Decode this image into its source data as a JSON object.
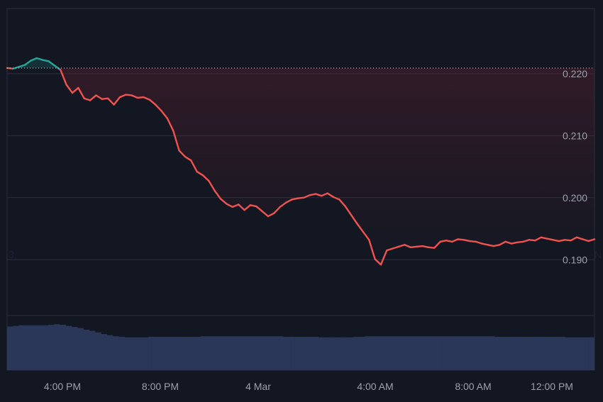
{
  "chart_data": {
    "type": "area",
    "title": "",
    "xlabel": "",
    "ylabel": "",
    "x_ticks": [
      "4:00 PM",
      "8:00 PM",
      "4 Mar",
      "4:00 AM",
      "8:00 AM",
      "12:00 PM"
    ],
    "y_ticks": [
      "0.220",
      "0.210",
      "0.200",
      "0.190"
    ],
    "y_tick_values": [
      0.22,
      0.21,
      0.2,
      0.19
    ],
    "ylim": [
      0.181,
      0.2305
    ],
    "reference_value": 0.2209,
    "edge_labels": {
      "left": "3",
      "right": "N"
    },
    "colors": {
      "background": "#131722",
      "up": "#26a69a",
      "down": "#ef5350",
      "fill_top": "#6e2432",
      "grid": "#2a2f3c",
      "volume": "#2f3b5f"
    },
    "series": [
      {
        "values": [
          0.2209,
          0.2208,
          0.2211,
          0.2214,
          0.2221,
          0.2225,
          0.2222,
          0.222,
          0.2213,
          0.2206,
          0.2182,
          0.2169,
          0.2177,
          0.216,
          0.2157,
          0.2165,
          0.2159,
          0.216,
          0.215,
          0.2162,
          0.2166,
          0.2165,
          0.2161,
          0.2162,
          0.2158,
          0.215,
          0.214,
          0.2128,
          0.2108,
          0.2076,
          0.2066,
          0.206,
          0.2042,
          0.2036,
          0.2027,
          0.2011,
          0.1998,
          0.199,
          0.1985,
          0.1989,
          0.198,
          0.1988,
          0.1986,
          0.1978,
          0.197,
          0.1975,
          0.1985,
          0.1992,
          0.1997,
          0.1999,
          0.2,
          0.2004,
          0.2006,
          0.2003,
          0.2007,
          0.2001,
          0.1997,
          0.1986,
          0.1972,
          0.1958,
          0.1945,
          0.1932,
          0.1901,
          0.1892,
          0.1915,
          0.1918,
          0.1921,
          0.1924,
          0.192,
          0.1921,
          0.1922,
          0.192,
          0.1919,
          0.1929,
          0.1931,
          0.1929,
          0.1933,
          0.1932,
          0.193,
          0.1929,
          0.1926,
          0.1924,
          0.1922,
          0.1924,
          0.1929,
          0.1926,
          0.1928,
          0.1929,
          0.1932,
          0.1931,
          0.1936,
          0.1934,
          0.1932,
          0.193,
          0.1932,
          0.1931,
          0.1936,
          0.1933,
          0.193,
          0.1933
        ]
      }
    ],
    "volume": [
      0.8,
      0.81,
      0.82,
      0.82,
      0.82,
      0.82,
      0.82,
      0.83,
      0.84,
      0.83,
      0.81,
      0.79,
      0.77,
      0.74,
      0.72,
      0.69,
      0.66,
      0.64,
      0.62,
      0.61,
      0.6,
      0.6,
      0.6,
      0.6,
      0.61,
      0.61,
      0.61,
      0.61,
      0.61,
      0.61,
      0.61,
      0.61,
      0.61,
      0.62,
      0.62,
      0.62,
      0.62,
      0.62,
      0.62,
      0.62,
      0.62,
      0.62,
      0.62,
      0.62,
      0.62,
      0.62,
      0.62,
      0.61,
      0.61,
      0.61,
      0.61,
      0.61,
      0.61,
      0.6,
      0.6,
      0.6,
      0.6,
      0.6,
      0.6,
      0.61,
      0.61,
      0.62,
      0.62,
      0.62,
      0.62,
      0.62,
      0.62,
      0.62,
      0.62,
      0.62,
      0.62,
      0.62,
      0.62,
      0.62,
      0.62,
      0.62,
      0.62,
      0.62,
      0.62,
      0.62,
      0.62,
      0.62,
      0.62,
      0.61,
      0.61,
      0.61,
      0.61,
      0.61,
      0.61,
      0.61,
      0.61,
      0.61,
      0.61,
      0.61,
      0.61,
      0.6,
      0.6,
      0.6,
      0.6,
      0.6
    ]
  }
}
